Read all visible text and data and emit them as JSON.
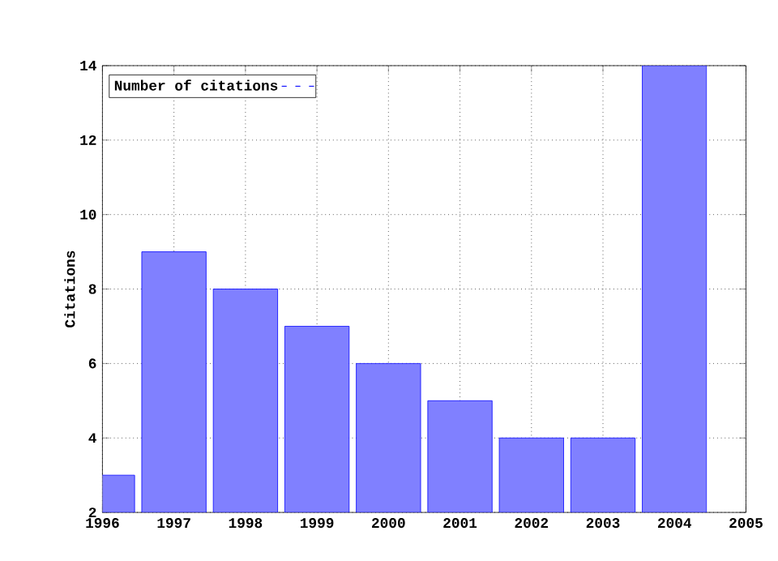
{
  "chart_data": {
    "type": "bar",
    "ylabel": "Citations",
    "x": [
      1996,
      1997,
      1998,
      1999,
      2000,
      2001,
      2002,
      2003,
      2004
    ],
    "series": [
      {
        "name": "Number of citations",
        "color": "#8080ff",
        "values": [
          3,
          9,
          8,
          7,
          6,
          5,
          4,
          4,
          14
        ]
      }
    ],
    "xlim": [
      1996,
      2005
    ],
    "xticks": [
      1996,
      1997,
      1998,
      1999,
      2000,
      2001,
      2002,
      2003,
      2004,
      2005
    ],
    "ylim": [
      2,
      14
    ],
    "yticks": [
      2,
      4,
      6,
      8,
      10,
      12,
      14
    ],
    "grid": true,
    "legend": "top left"
  }
}
